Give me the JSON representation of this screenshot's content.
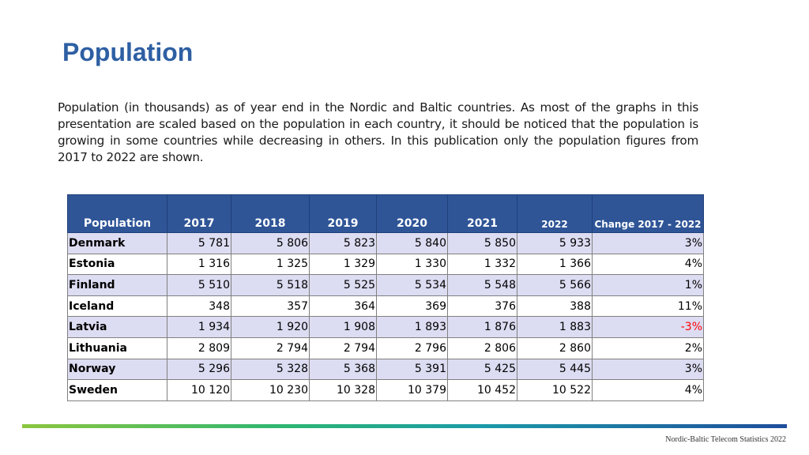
{
  "page": {
    "title": "Population",
    "intro": "Population (in thousands) as of year end in the Nordic and Baltic countries. As most of the graphs in this presentation are scaled based on the population in each country, it should be noticed that the population is growing in some countries while decreasing in others. In this publication only the population figures from 2017 to 2022 are shown.",
    "footer": "Nordic-Baltic Telecom Statistics 2022"
  },
  "table": {
    "headers": [
      "Population",
      "2017",
      "2018",
      "2019",
      "2020",
      "2021",
      "2022",
      "Change 2017 - 2022"
    ],
    "rows": [
      {
        "country": "Denmark",
        "values": [
          "5 781",
          "5 806",
          "5 823",
          "5 840",
          "5 850",
          "5 933"
        ],
        "change": "3%"
      },
      {
        "country": "Estonia",
        "values": [
          "1 316",
          "1 325",
          "1 329",
          "1 330",
          "1 332",
          "1 366"
        ],
        "change": "4%"
      },
      {
        "country": "Finland",
        "values": [
          "5 510",
          "5 518",
          "5 525",
          "5 534",
          "5 548",
          "5 566"
        ],
        "change": "1%"
      },
      {
        "country": "Iceland",
        "values": [
          "348",
          "357",
          "364",
          "369",
          "376",
          "388"
        ],
        "change": "11%"
      },
      {
        "country": "Latvia",
        "values": [
          "1 934",
          "1 920",
          "1 908",
          "1 893",
          "1 876",
          "1 883"
        ],
        "change": "-3%"
      },
      {
        "country": "Lithuania",
        "values": [
          "2 809",
          "2 794",
          "2 794",
          "2 796",
          "2 806",
          "2 860"
        ],
        "change": "2%"
      },
      {
        "country": "Norway",
        "values": [
          "5 296",
          "5 328",
          "5 368",
          "5 391",
          "5 425",
          "5 445"
        ],
        "change": "3%"
      },
      {
        "country": "Sweden",
        "values": [
          "10 120",
          "10 230",
          "10 328",
          "10 379",
          "10 452",
          "10 522"
        ],
        "change": "4%"
      }
    ]
  },
  "colors": {
    "title": "#2e5fa3",
    "header_bg": "#2f5597",
    "row_shade": "#dcdcf2",
    "negative": "#ff0000"
  }
}
